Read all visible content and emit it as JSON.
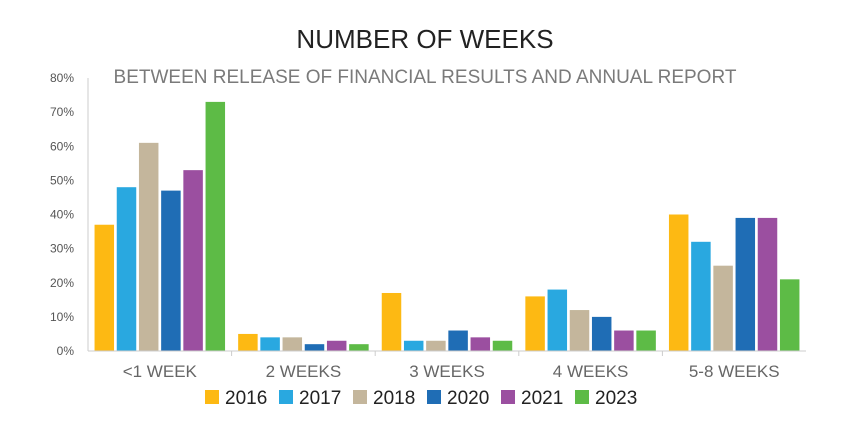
{
  "chart_data": {
    "type": "bar",
    "title": "NUMBER OF WEEKS",
    "subtitle": "BETWEEN RELEASE OF FINANCIAL RESULTS AND ANNUAL REPORT",
    "xlabel": "",
    "ylabel": "",
    "categories": [
      "<1 WEEK",
      "2 WEEKS",
      "3 WEEKS",
      "4 WEEKS",
      "5-8 WEEKS"
    ],
    "ylim": [
      0,
      80
    ],
    "yticks": [
      "0%",
      "10%",
      "20%",
      "30%",
      "40%",
      "50%",
      "60%",
      "70%",
      "80%"
    ],
    "grid": false,
    "legend_position": "bottom",
    "series": [
      {
        "name": "2016",
        "color": "#FDB913",
        "values": [
          37,
          5,
          17,
          16,
          40
        ]
      },
      {
        "name": "2017",
        "color": "#29A8E0",
        "values": [
          48,
          4,
          3,
          18,
          32
        ]
      },
      {
        "name": "2018",
        "color": "#C4B69C",
        "values": [
          61,
          4,
          3,
          12,
          25
        ]
      },
      {
        "name": "2020",
        "color": "#1F6DB5",
        "values": [
          47,
          2,
          6,
          10,
          39
        ]
      },
      {
        "name": "2021",
        "color": "#9B4FA0",
        "values": [
          53,
          3,
          4,
          6,
          39
        ]
      },
      {
        "name": "2023",
        "color": "#5DBB46",
        "values": [
          73,
          2,
          3,
          6,
          21
        ]
      }
    ]
  }
}
